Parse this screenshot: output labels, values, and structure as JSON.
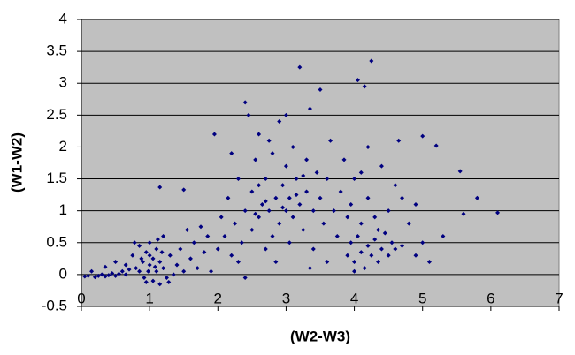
{
  "chart_data": {
    "type": "scatter",
    "x_label": "(W2-W3)",
    "y_label": "(W1-W2)",
    "color": "#000080",
    "background": "#c0c0c0",
    "grid": true,
    "xlim": [
      0,
      7
    ],
    "ylim": [
      -0.5,
      4
    ],
    "xticks": [
      0,
      1,
      2,
      3,
      4,
      5,
      6,
      7
    ],
    "yticks": [
      -0.5,
      0,
      0.5,
      1,
      1.5,
      2,
      2.5,
      3,
      3.5,
      4
    ],
    "x": [
      0.05,
      0.1,
      0.15,
      0.2,
      0.25,
      0.3,
      0.35,
      0.4,
      0.45,
      0.5,
      0.55,
      0.6,
      0.65,
      0.7,
      0.35,
      0.5,
      0.65,
      0.75,
      0.8,
      0.85,
      0.9,
      0.92,
      0.95,
      1.0,
      1.0,
      1.05,
      1.05,
      1.1,
      1.1,
      1.15,
      1.15,
      1.2,
      1.2,
      1.25,
      1.3,
      1.35,
      1.4,
      0.85,
      0.95,
      1.0,
      1.08,
      1.12,
      1.18,
      1.28,
      1.45,
      1.5,
      1.55,
      1.6,
      1.65,
      1.7,
      1.75,
      1.8,
      1.85,
      1.9,
      0.78,
      0.88,
      0.98,
      2.0,
      2.05,
      2.1,
      2.15,
      2.2,
      2.25,
      2.3,
      2.35,
      2.4,
      2.4,
      2.45,
      2.5,
      2.5,
      2.55,
      2.6,
      2.6,
      2.65,
      2.7,
      2.7,
      2.75,
      2.8,
      2.8,
      2.85,
      2.9,
      2.9,
      2.95,
      3.0,
      3.0,
      3.05,
      3.05,
      3.1,
      3.1,
      3.15,
      3.2,
      3.2,
      3.25,
      3.3,
      3.3,
      3.35,
      3.4,
      3.4,
      3.45,
      3.5,
      3.5,
      3.55,
      3.6,
      3.65,
      3.7,
      3.75,
      3.8,
      3.85,
      3.9,
      3.95,
      4.0,
      2.2,
      2.3,
      2.6,
      2.75,
      2.85,
      3.0,
      3.35,
      3.6,
      2.95,
      3.15,
      2.7,
      2.55,
      3.25,
      1.95,
      2.4,
      3.9,
      3.95,
      4.0,
      4.05,
      4.1,
      4.15,
      4.2,
      4.25,
      4.3,
      4.35,
      4.4,
      4.45,
      4.5,
      4.55,
      4.6,
      4.7,
      4.1,
      4.3,
      4.2,
      4.5,
      4.6,
      4.4,
      4.2,
      4.1,
      4.7,
      4.8,
      4.9,
      5.0,
      5.1,
      4.9,
      4.25,
      4.05,
      4.15,
      6.1,
      5.8,
      5.55,
      5.2,
      5.0,
      5.6,
      5.3,
      1.15,
      1.5,
      4.0,
      4.35,
      4.65
    ],
    "values": [
      -0.03,
      -0.02,
      0.05,
      -0.04,
      -0.02,
      0,
      -0.03,
      -0.01,
      0.02,
      -0.02,
      0.01,
      0.05,
      0,
      0.08,
      0.12,
      0.2,
      0.15,
      0.3,
      0.1,
      0.45,
      0.2,
      -0.05,
      0.35,
      0.15,
      0.5,
      -0.1,
      0.25,
      0.05,
      0.4,
      -0.15,
      0.2,
      0.1,
      0.6,
      -0.05,
      0.3,
      0,
      0.15,
      0.05,
      -0.12,
      0.3,
      0.12,
      0.55,
      0.35,
      -0.12,
      0.4,
      0.05,
      0.7,
      0.25,
      0.5,
      0.1,
      0.75,
      0.35,
      0.6,
      0.05,
      0.5,
      0.25,
      0.05,
      0.4,
      0.9,
      0.6,
      1.2,
      0.3,
      0.8,
      1.5,
      0.5,
      1.0,
      2.7,
      2.5,
      1.3,
      0.7,
      1.8,
      0.9,
      2.2,
      1.1,
      0.4,
      1.5,
      1.0,
      1.9,
      0.6,
      1.2,
      2.4,
      0.8,
      1.4,
      1.0,
      1.7,
      0.5,
      1.2,
      2.0,
      0.9,
      1.5,
      3.25,
      1.1,
      0.7,
      1.8,
      1.3,
      2.6,
      1.0,
      0.4,
      1.6,
      2.9,
      1.2,
      0.8,
      1.5,
      2.1,
      1.0,
      0.6,
      1.3,
      1.8,
      0.9,
      1.1,
      1.5,
      1.9,
      0.2,
      1.4,
      2.1,
      0.2,
      2.5,
      0.1,
      0.2,
      1.05,
      1.25,
      1.15,
      0.95,
      1.55,
      2.2,
      -0.05,
      0.3,
      0.5,
      0.2,
      0.6,
      0.35,
      0.1,
      0.45,
      0.3,
      0.55,
      0.2,
      0.4,
      0.65,
      0.3,
      0.5,
      0.4,
      0.45,
      0.8,
      0.9,
      1.2,
      1.0,
      1.4,
      1.7,
      2.0,
      1.6,
      1.2,
      0.8,
      1.1,
      0.5,
      0.2,
      0.3,
      3.35,
      3.05,
      2.95,
      0.97,
      1.2,
      1.62,
      2.02,
      2.17,
      0.95,
      0.6,
      1.37,
      1.33,
      0.05,
      0.7,
      2.1
    ]
  }
}
